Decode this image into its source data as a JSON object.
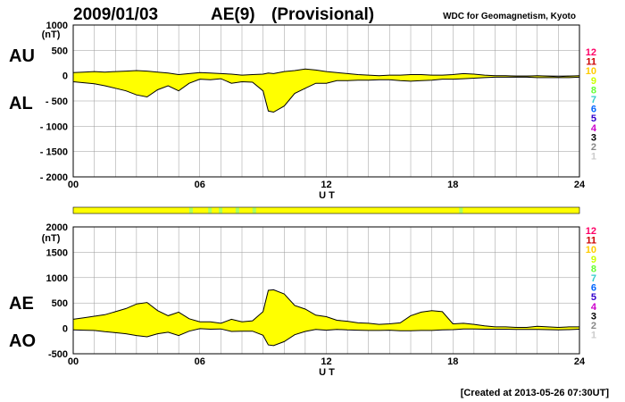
{
  "header": {
    "date": "2009/01/03",
    "index": "AE(9)",
    "status": "(Provisional)",
    "source": "WDC for Geomagnetism, Kyoto"
  },
  "footer": {
    "created": "[Created at 2013-05-26 07:30UT]"
  },
  "colors": {
    "fill": "#ffff00",
    "line": "#000000",
    "grid": "#999999",
    "bar_station_green": "#a6ff66"
  },
  "level_colors": [
    "#cccccc",
    "#888888",
    "#000000",
    "#cc00cc",
    "#3300cc",
    "#0066ff",
    "#33cccc",
    "#66ff33",
    "#ccff00",
    "#ffcc00",
    "#cc0000",
    "#ff0066"
  ],
  "chart_data": [
    {
      "type": "area",
      "id": "au_al",
      "series_labels": [
        "AU",
        "AL"
      ],
      "unit": "(nT)",
      "xlabel": "U T",
      "x_ticks": [
        "00",
        "06",
        "12",
        "18",
        "24"
      ],
      "xlim": [
        0,
        24
      ],
      "ylim": [
        -2000,
        1000
      ],
      "y_ticks": [
        "1000",
        "500",
        "0",
        "- 500",
        "- 1000",
        "- 1500",
        "- 2000"
      ],
      "y_tick_values": [
        1000,
        500,
        0,
        -500,
        -1000,
        -1500,
        -2000
      ],
      "grid": true,
      "level_labels": [
        "12",
        "11",
        "10",
        "9",
        "8",
        "7",
        "6",
        "5",
        "4",
        "3",
        "2",
        "1"
      ],
      "x": [
        0,
        0.5,
        1,
        1.5,
        2,
        2.5,
        3,
        3.5,
        4,
        4.5,
        5,
        5.5,
        6,
        6.5,
        7,
        7.5,
        8,
        8.5,
        9,
        9.25,
        9.5,
        10,
        10.5,
        11,
        11.5,
        12,
        12.5,
        13,
        13.5,
        14,
        14.5,
        15,
        15.5,
        16,
        16.5,
        17,
        17.5,
        18,
        18.5,
        19,
        19.5,
        20,
        20.5,
        21,
        21.5,
        22,
        22.5,
        23,
        23.5,
        24
      ],
      "series": [
        {
          "name": "AU",
          "values": [
            60,
            70,
            80,
            70,
            80,
            90,
            100,
            90,
            70,
            50,
            20,
            40,
            60,
            50,
            40,
            30,
            10,
            20,
            30,
            50,
            40,
            80,
            100,
            130,
            110,
            80,
            60,
            40,
            20,
            10,
            0,
            10,
            10,
            20,
            20,
            10,
            10,
            20,
            40,
            30,
            10,
            0,
            0,
            -10,
            -10,
            0,
            -10,
            -20,
            -10,
            0
          ]
        },
        {
          "name": "AL",
          "values": [
            -120,
            -140,
            -160,
            -200,
            -250,
            -300,
            -380,
            -420,
            -280,
            -200,
            -300,
            -150,
            -70,
            -80,
            -60,
            -150,
            -120,
            -130,
            -300,
            -700,
            -720,
            -600,
            -350,
            -250,
            -150,
            -150,
            -100,
            -100,
            -90,
            -90,
            -80,
            -80,
            -100,
            -110,
            -100,
            -90,
            -70,
            -70,
            -60,
            -50,
            -40,
            -30,
            -30,
            -30,
            -30,
            -40,
            -40,
            -40,
            -40,
            -30
          ]
        }
      ]
    },
    {
      "type": "area",
      "id": "ae_ao",
      "series_labels": [
        "AE",
        "AO"
      ],
      "unit": "(nT)",
      "xlabel": "U T",
      "x_ticks": [
        "00",
        "06",
        "12",
        "18",
        "24"
      ],
      "xlim": [
        0,
        24
      ],
      "ylim": [
        -500,
        2000
      ],
      "y_ticks": [
        "2000",
        "1500",
        "1000",
        "500",
        "0",
        "-500"
      ],
      "y_tick_values": [
        2000,
        1500,
        1000,
        500,
        0,
        -500
      ],
      "grid": true,
      "level_labels": [
        "12",
        "11",
        "10",
        "9",
        "8",
        "7",
        "6",
        "5",
        "4",
        "3",
        "2",
        "1"
      ],
      "x": [
        0,
        0.5,
        1,
        1.5,
        2,
        2.5,
        3,
        3.5,
        4,
        4.5,
        5,
        5.5,
        6,
        6.5,
        7,
        7.5,
        8,
        8.5,
        9,
        9.25,
        9.5,
        10,
        10.5,
        11,
        11.5,
        12,
        12.5,
        13,
        13.5,
        14,
        14.5,
        15,
        15.5,
        16,
        16.5,
        17,
        17.5,
        18,
        18.5,
        19,
        19.5,
        20,
        20.5,
        21,
        21.5,
        22,
        22.5,
        23,
        23.5,
        24
      ],
      "series": [
        {
          "name": "AE",
          "values": [
            180,
            210,
            240,
            270,
            330,
            390,
            480,
            510,
            350,
            250,
            320,
            190,
            130,
            130,
            100,
            180,
            130,
            150,
            330,
            750,
            760,
            680,
            450,
            380,
            260,
            230,
            160,
            140,
            110,
            100,
            80,
            90,
            110,
            250,
            320,
            350,
            330,
            90,
            100,
            80,
            50,
            30,
            30,
            20,
            20,
            40,
            30,
            20,
            30,
            30
          ]
        },
        {
          "name": "AO",
          "values": [
            -30,
            -35,
            -40,
            -65,
            -85,
            -105,
            -140,
            -165,
            -105,
            -75,
            -140,
            -55,
            -5,
            -15,
            -10,
            -60,
            -55,
            -55,
            -135,
            -325,
            -340,
            -260,
            -125,
            -60,
            -20,
            -35,
            -20,
            -30,
            -35,
            -40,
            -40,
            -35,
            -45,
            -45,
            -40,
            -40,
            -30,
            -25,
            -10,
            -10,
            -15,
            -15,
            -15,
            -20,
            -20,
            -20,
            -25,
            -30,
            -25,
            -15
          ]
        }
      ]
    }
  ],
  "station_bar": {
    "xlim": [
      0,
      24
    ],
    "green_marks_ut": [
      5.5,
      6.4,
      6.9,
      7.7,
      8.5,
      18.3
    ]
  }
}
